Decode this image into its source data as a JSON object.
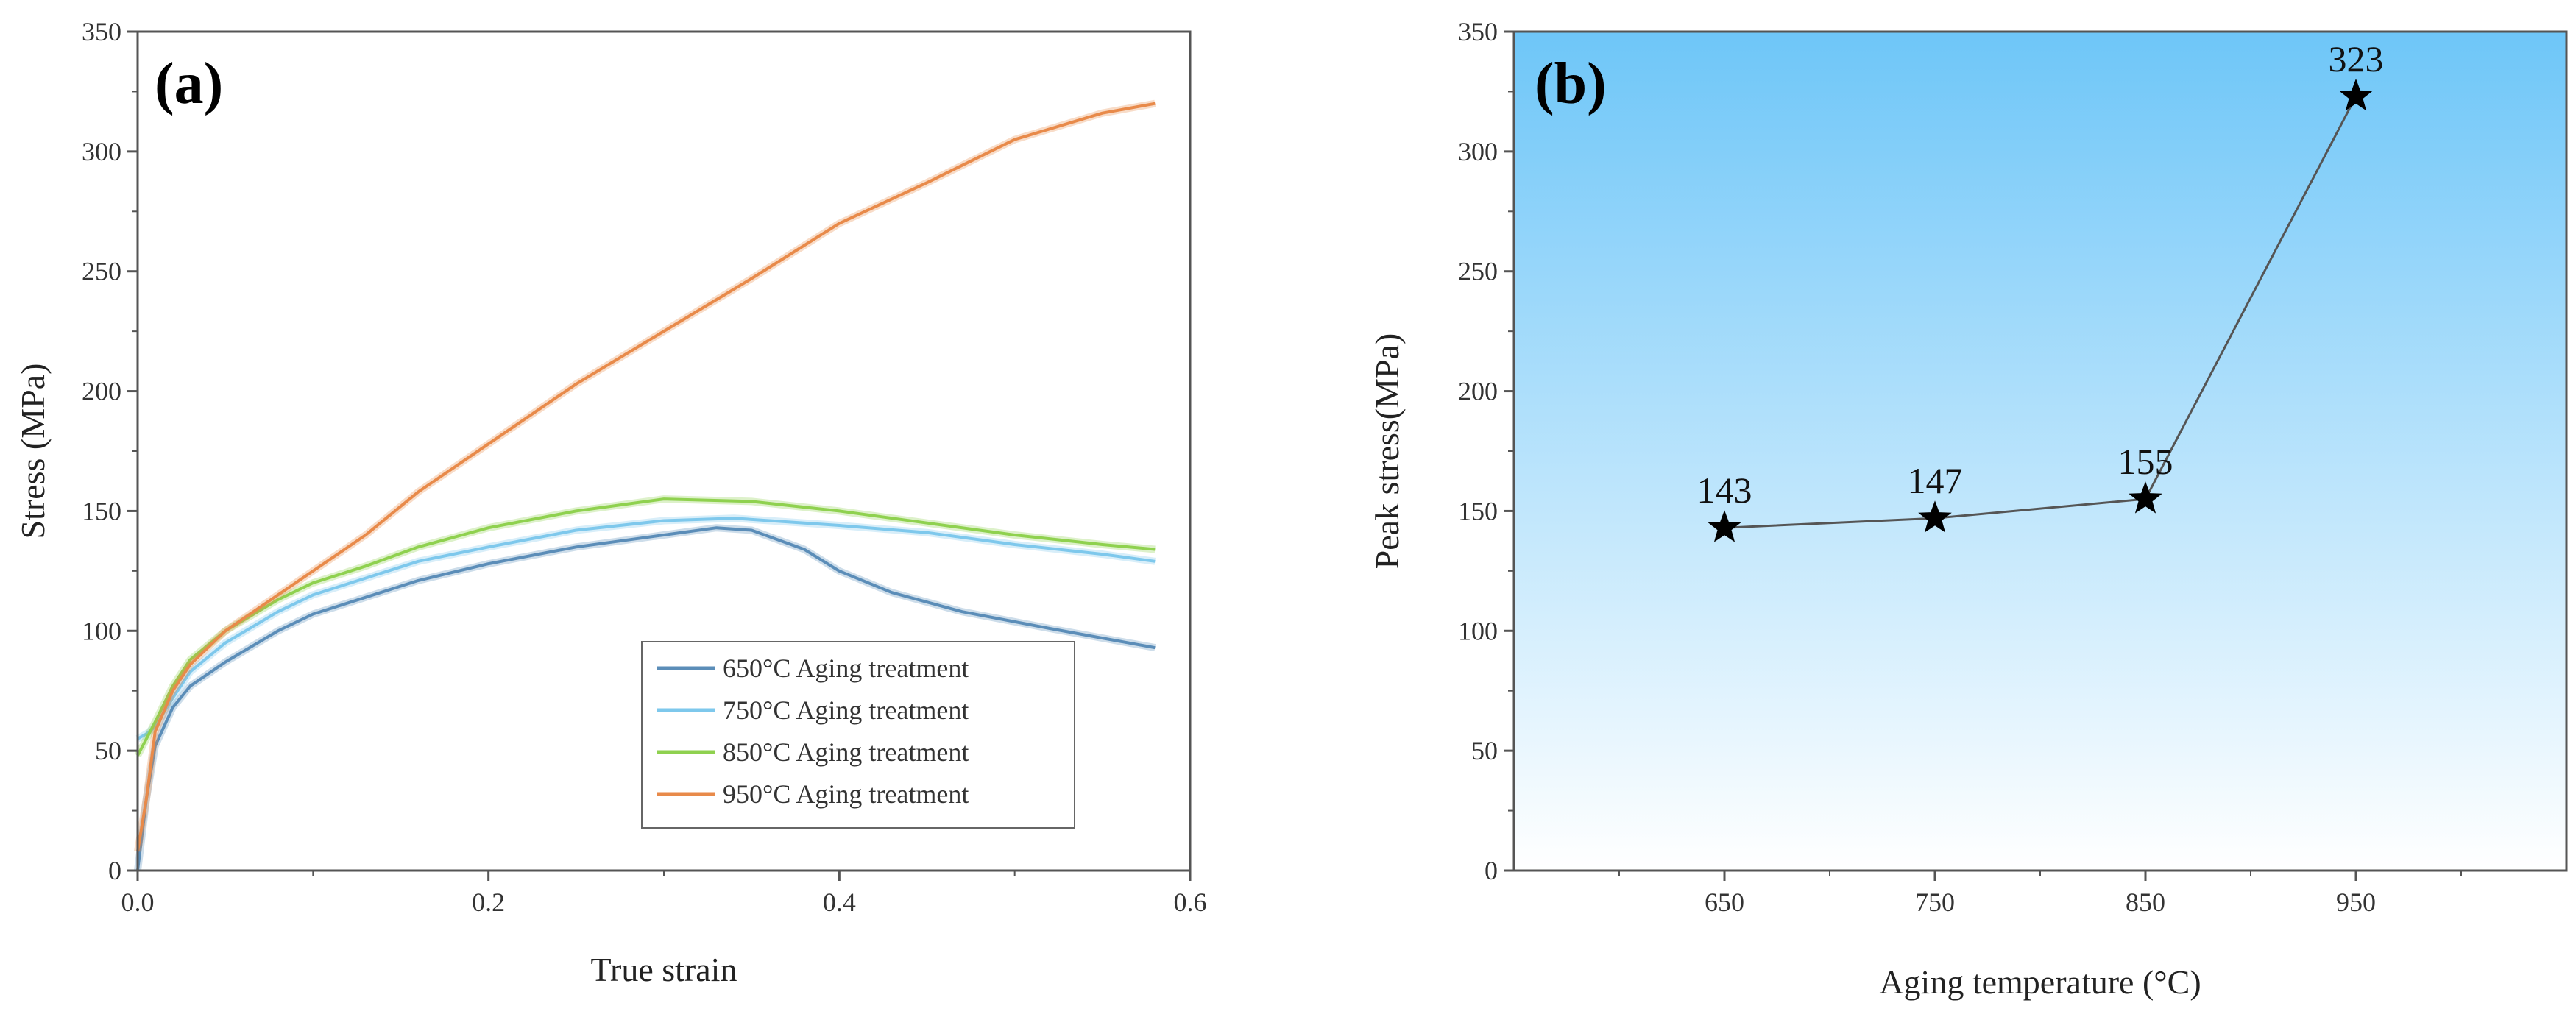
{
  "chart_data": [
    {
      "type": "line",
      "panel_label": "(a)",
      "xlabel": "True strain",
      "ylabel": "Stress (MPa)",
      "xlim": [
        0,
        0.6
      ],
      "ylim": [
        0,
        350
      ],
      "x_ticks": [
        "0.0",
        "0.2",
        "0.4",
        "0.6"
      ],
      "y_ticks": [
        "0",
        "50",
        "100",
        "150",
        "200",
        "250",
        "300",
        "350"
      ],
      "legend_position": "bottom-right",
      "series": [
        {
          "name": "650°C Aging treatment",
          "color": "#5b8db8",
          "points": [
            [
              0,
              0
            ],
            [
              0.005,
              30
            ],
            [
              0.01,
              52
            ],
            [
              0.02,
              68
            ],
            [
              0.03,
              77
            ],
            [
              0.05,
              87
            ],
            [
              0.08,
              100
            ],
            [
              0.1,
              107
            ],
            [
              0.13,
              114
            ],
            [
              0.16,
              121
            ],
            [
              0.2,
              128
            ],
            [
              0.25,
              135
            ],
            [
              0.3,
              140
            ],
            [
              0.33,
              143
            ],
            [
              0.35,
              142
            ],
            [
              0.38,
              134
            ],
            [
              0.4,
              125
            ],
            [
              0.43,
              116
            ],
            [
              0.47,
              108
            ],
            [
              0.52,
              101
            ],
            [
              0.55,
              97
            ],
            [
              0.58,
              93
            ]
          ]
        },
        {
          "name": "750°C Aging treatment",
          "color": "#7ec8ec",
          "points": [
            [
              0,
              55
            ],
            [
              0.005,
              57
            ],
            [
              0.01,
              60
            ],
            [
              0.02,
              72
            ],
            [
              0.03,
              83
            ],
            [
              0.05,
              95
            ],
            [
              0.08,
              108
            ],
            [
              0.1,
              115
            ],
            [
              0.13,
              122
            ],
            [
              0.16,
              129
            ],
            [
              0.2,
              135
            ],
            [
              0.25,
              142
            ],
            [
              0.3,
              146
            ],
            [
              0.34,
              147
            ],
            [
              0.4,
              144
            ],
            [
              0.45,
              141
            ],
            [
              0.5,
              136
            ],
            [
              0.55,
              132
            ],
            [
              0.58,
              129
            ]
          ]
        },
        {
          "name": "850°C Aging treatment",
          "color": "#8fd14f",
          "points": [
            [
              0,
              48
            ],
            [
              0.005,
              55
            ],
            [
              0.01,
              62
            ],
            [
              0.02,
              77
            ],
            [
              0.03,
              88
            ],
            [
              0.05,
              100
            ],
            [
              0.08,
              113
            ],
            [
              0.1,
              120
            ],
            [
              0.13,
              127
            ],
            [
              0.16,
              135
            ],
            [
              0.2,
              143
            ],
            [
              0.25,
              150
            ],
            [
              0.3,
              155
            ],
            [
              0.35,
              154
            ],
            [
              0.4,
              150
            ],
            [
              0.45,
              145
            ],
            [
              0.5,
              140
            ],
            [
              0.55,
              136
            ],
            [
              0.58,
              134
            ]
          ]
        },
        {
          "name": "950°C Aging treatment",
          "color": "#e88a4a",
          "points": [
            [
              0,
              8
            ],
            [
              0.005,
              30
            ],
            [
              0.01,
              58
            ],
            [
              0.02,
              75
            ],
            [
              0.03,
              86
            ],
            [
              0.05,
              100
            ],
            [
              0.08,
              115
            ],
            [
              0.1,
              125
            ],
            [
              0.13,
              140
            ],
            [
              0.16,
              158
            ],
            [
              0.2,
              178
            ],
            [
              0.25,
              203
            ],
            [
              0.3,
              225
            ],
            [
              0.35,
              247
            ],
            [
              0.4,
              270
            ],
            [
              0.45,
              287
            ],
            [
              0.5,
              305
            ],
            [
              0.55,
              316
            ],
            [
              0.58,
              320
            ]
          ]
        }
      ]
    },
    {
      "type": "line",
      "panel_label": "(b)",
      "xlabel": "Aging temperature (°C)",
      "ylabel": "Peak stress(MPa)",
      "xlim": [
        550,
        1050
      ],
      "ylim": [
        0,
        350
      ],
      "categories": [
        "650",
        "750",
        "850",
        "950"
      ],
      "x_values": [
        650,
        750,
        850,
        950
      ],
      "values": [
        143,
        147,
        155,
        323
      ],
      "data_labels": [
        "143",
        "147",
        "155",
        "323"
      ],
      "y_ticks": [
        "0",
        "50",
        "100",
        "150",
        "200",
        "250",
        "300",
        "350"
      ],
      "marker": "star",
      "line_color": "#555555",
      "background_gradient": [
        "#6ec6f8",
        "#ffffff"
      ]
    }
  ]
}
